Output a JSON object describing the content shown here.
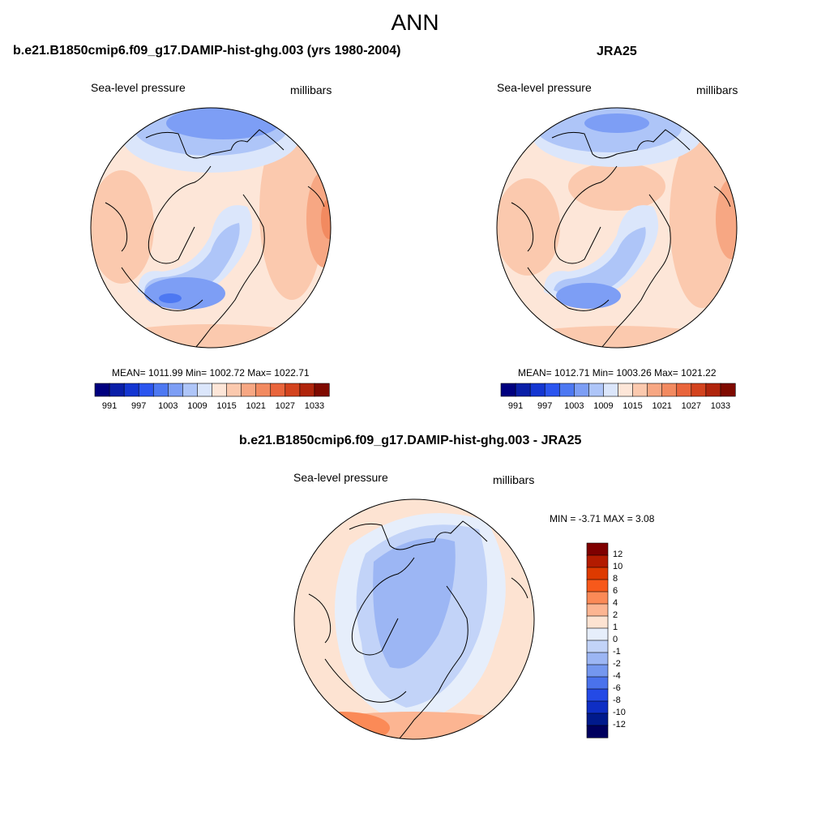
{
  "figure": {
    "title": "ANN"
  },
  "panels": [
    {
      "title": "b.e21.B1850cmip6.f09_g17.DAMIP-hist-ghg.003 (yrs 1980-2004)",
      "variable": "Sea-level pressure",
      "units": "millibars",
      "stats": "MEAN= 1011.99  Min= 1002.72  Max= 1022.71",
      "colorbar_labels": [
        "991",
        "997",
        "1003",
        "1009",
        "1015",
        "1021",
        "1027",
        "1033"
      ]
    },
    {
      "title": "JRA25",
      "variable": "Sea-level pressure",
      "units": "millibars",
      "stats": "MEAN= 1012.71  Min= 1003.26  Max= 1021.22",
      "colorbar_labels": [
        "991",
        "997",
        "1003",
        "1009",
        "1015",
        "1021",
        "1027",
        "1033"
      ]
    },
    {
      "title": "b.e21.B1850cmip6.f09_g17.DAMIP-hist-ghg.003 - JRA25",
      "variable": "Sea-level pressure",
      "units": "millibars",
      "stats": "MIN =  -3.71 MAX =   3.08",
      "colorbar_labels": [
        "12",
        "10",
        "8",
        "6",
        "4",
        "2",
        "1",
        "0",
        "-1",
        "-2",
        "-4",
        "-6",
        "-8",
        "-10",
        "-12"
      ]
    }
  ],
  "colors": {
    "abs_scale": [
      "#00007f",
      "#0a1fa8",
      "#1436d1",
      "#2b55ef",
      "#4d78f2",
      "#7d9ef5",
      "#aec5f8",
      "#dbe6fb",
      "#fde6d8",
      "#fbc9ae",
      "#f7a783",
      "#f28a60",
      "#e9653c",
      "#d3431e",
      "#b0250c",
      "#7f0a00"
    ],
    "diff_scale": [
      "#7f0000",
      "#b31b00",
      "#de3a00",
      "#f7591b",
      "#fb8a57",
      "#fcb592",
      "#fde3d2",
      "#e6eefb",
      "#c2d3f8",
      "#9cb6f4",
      "#7497ef",
      "#4a72ec",
      "#244ae6",
      "#0e2ec4",
      "#001a8c",
      "#00005e"
    ]
  }
}
